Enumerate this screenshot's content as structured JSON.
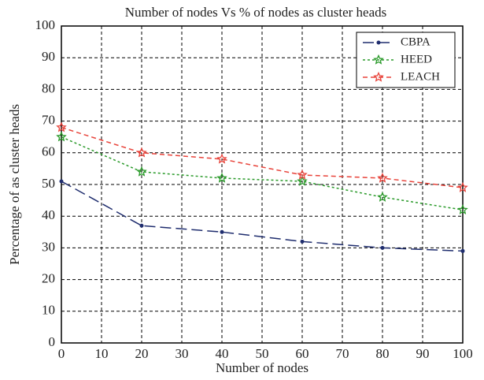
{
  "chart_data": {
    "type": "line",
    "title": "Number of nodes Vs % of nodes as cluster heads",
    "x_label": "Number of nodes",
    "y_label": "Percentage of as cluster heads",
    "x": [
      0,
      20,
      40,
      60,
      80,
      100
    ],
    "series": [
      {
        "name": "CBPA",
        "color": "#1f2d6e",
        "linestyle": "longdash",
        "marker": "dot",
        "values": [
          51,
          37,
          35,
          32,
          30,
          29
        ]
      },
      {
        "name": "HEED",
        "color": "#2a9a2a",
        "linestyle": "dotted",
        "marker": "star",
        "values": [
          65,
          54,
          52,
          51,
          46,
          42
        ]
      },
      {
        "name": "LEACH",
        "color": "#e8433a",
        "linestyle": "dashed",
        "marker": "star",
        "values": [
          68,
          60,
          58,
          53,
          52,
          49
        ]
      }
    ],
    "xlim": [
      0,
      100
    ],
    "ylim": [
      0,
      100
    ],
    "xticks": [
      0,
      10,
      20,
      30,
      40,
      50,
      60,
      70,
      80,
      90,
      100
    ],
    "yticks": [
      0,
      10,
      20,
      30,
      40,
      50,
      60,
      70,
      80,
      90,
      100
    ],
    "grid": true,
    "legend": "upper right"
  }
}
